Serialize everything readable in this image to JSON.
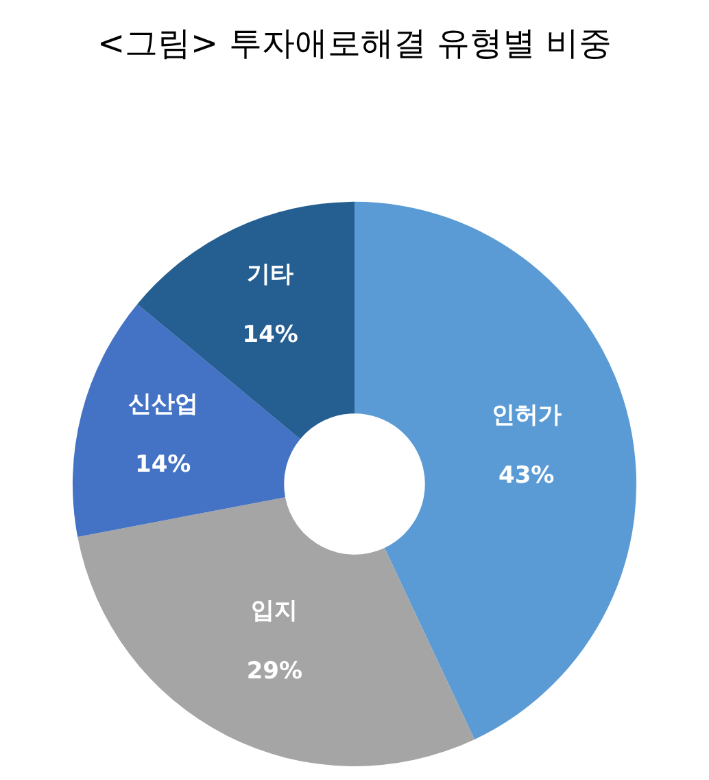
{
  "chart_data": {
    "type": "donut",
    "title": "<그림> 투자애로해결 유형별 비중",
    "categories": [
      "인허가",
      "입지",
      "신산업",
      "기타"
    ],
    "values": [
      43,
      29,
      14,
      14
    ],
    "colors": [
      "#5b9bd5",
      "#a5a5a5",
      "#4472c4",
      "#255e91"
    ],
    "value_labels": [
      "43%",
      "29%",
      "14%",
      "14%"
    ],
    "legend": false
  }
}
